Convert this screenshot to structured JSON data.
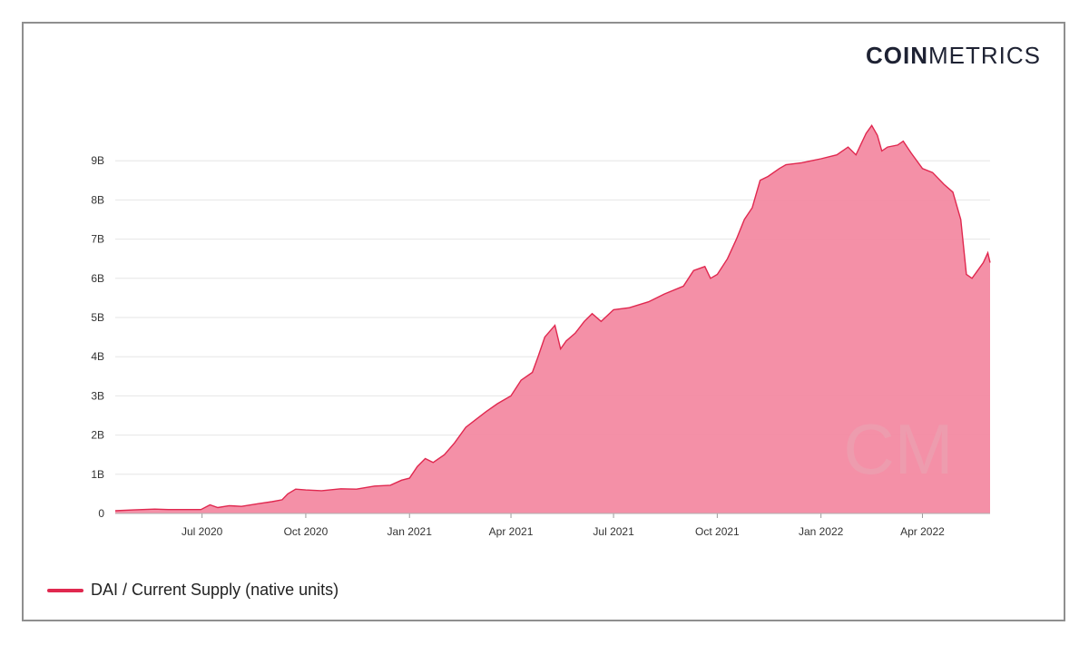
{
  "brand": {
    "logo_bold": "COIN",
    "logo_light": "METRICS",
    "watermark": "CM"
  },
  "colors": {
    "fill": "#f38aa2",
    "stroke": "#e0284f",
    "grid": "#e6e6e6",
    "text": "#333333"
  },
  "legend": {
    "label": "DAI / Current Supply (native units)"
  },
  "chart_data": {
    "type": "area",
    "title": "",
    "xlabel": "",
    "ylabel": "",
    "ylim": [
      0,
      10000000000
    ],
    "xlim": [
      "2020-04-15",
      "2022-05-31"
    ],
    "y_ticks": [
      {
        "value": 0,
        "label": "0"
      },
      {
        "value": 1000000000,
        "label": "1B"
      },
      {
        "value": 2000000000,
        "label": "2B"
      },
      {
        "value": 3000000000,
        "label": "3B"
      },
      {
        "value": 4000000000,
        "label": "4B"
      },
      {
        "value": 5000000000,
        "label": "5B"
      },
      {
        "value": 6000000000,
        "label": "6B"
      },
      {
        "value": 7000000000,
        "label": "7B"
      },
      {
        "value": 8000000000,
        "label": "8B"
      },
      {
        "value": 9000000000,
        "label": "9B"
      }
    ],
    "x_ticks": [
      {
        "date": "2020-07-01",
        "label": "Jul 2020"
      },
      {
        "date": "2020-10-01",
        "label": "Oct 2020"
      },
      {
        "date": "2021-01-01",
        "label": "Jan 2021"
      },
      {
        "date": "2021-04-01",
        "label": "Apr 2021"
      },
      {
        "date": "2021-07-01",
        "label": "Jul 2021"
      },
      {
        "date": "2021-10-01",
        "label": "Oct 2021"
      },
      {
        "date": "2022-01-01",
        "label": "Jan 2022"
      },
      {
        "date": "2022-04-01",
        "label": "Apr 2022"
      }
    ],
    "grid": true,
    "legend_position": "bottom-left",
    "series": [
      {
        "name": "DAI / Current Supply (native units)",
        "points": [
          [
            "2020-04-15",
            0.07
          ],
          [
            "2020-05-01",
            0.09
          ],
          [
            "2020-05-20",
            0.11
          ],
          [
            "2020-06-01",
            0.1
          ],
          [
            "2020-06-15",
            0.1
          ],
          [
            "2020-06-30",
            0.1
          ],
          [
            "2020-07-08",
            0.22
          ],
          [
            "2020-07-15",
            0.15
          ],
          [
            "2020-07-25",
            0.2
          ],
          [
            "2020-08-05",
            0.18
          ],
          [
            "2020-08-20",
            0.25
          ],
          [
            "2020-09-01",
            0.3
          ],
          [
            "2020-09-10",
            0.35
          ],
          [
            "2020-09-15",
            0.5
          ],
          [
            "2020-09-22",
            0.62
          ],
          [
            "2020-10-01",
            0.6
          ],
          [
            "2020-10-15",
            0.58
          ],
          [
            "2020-11-01",
            0.63
          ],
          [
            "2020-11-15",
            0.62
          ],
          [
            "2020-12-01",
            0.7
          ],
          [
            "2020-12-15",
            0.72
          ],
          [
            "2020-12-25",
            0.85
          ],
          [
            "2021-01-01",
            0.9
          ],
          [
            "2021-01-08",
            1.2
          ],
          [
            "2021-01-15",
            1.4
          ],
          [
            "2021-01-22",
            1.3
          ],
          [
            "2021-02-01",
            1.5
          ],
          [
            "2021-02-10",
            1.8
          ],
          [
            "2021-02-20",
            2.2
          ],
          [
            "2021-03-01",
            2.4
          ],
          [
            "2021-03-10",
            2.6
          ],
          [
            "2021-03-20",
            2.8
          ],
          [
            "2021-04-01",
            3.0
          ],
          [
            "2021-04-10",
            3.4
          ],
          [
            "2021-04-20",
            3.6
          ],
          [
            "2021-04-25",
            4.0
          ],
          [
            "2021-05-01",
            4.5
          ],
          [
            "2021-05-10",
            4.8
          ],
          [
            "2021-05-15",
            4.2
          ],
          [
            "2021-05-20",
            4.4
          ],
          [
            "2021-05-28",
            4.6
          ],
          [
            "2021-06-05",
            4.9
          ],
          [
            "2021-06-12",
            5.1
          ],
          [
            "2021-06-20",
            4.9
          ],
          [
            "2021-07-01",
            5.2
          ],
          [
            "2021-07-15",
            5.25
          ],
          [
            "2021-08-01",
            5.4
          ],
          [
            "2021-08-15",
            5.6
          ],
          [
            "2021-09-01",
            5.8
          ],
          [
            "2021-09-10",
            6.2
          ],
          [
            "2021-09-20",
            6.3
          ],
          [
            "2021-09-25",
            6.0
          ],
          [
            "2021-10-01",
            6.1
          ],
          [
            "2021-10-10",
            6.5
          ],
          [
            "2021-10-18",
            7.0
          ],
          [
            "2021-10-25",
            7.5
          ],
          [
            "2021-11-01",
            7.8
          ],
          [
            "2021-11-08",
            8.5
          ],
          [
            "2021-11-15",
            8.6
          ],
          [
            "2021-11-25",
            8.8
          ],
          [
            "2021-12-01",
            8.9
          ],
          [
            "2021-12-15",
            8.95
          ],
          [
            "2022-01-01",
            9.05
          ],
          [
            "2022-01-15",
            9.15
          ],
          [
            "2022-01-25",
            9.35
          ],
          [
            "2022-02-01",
            9.15
          ],
          [
            "2022-02-10",
            9.7
          ],
          [
            "2022-02-15",
            9.9
          ],
          [
            "2022-02-20",
            9.65
          ],
          [
            "2022-02-24",
            9.25
          ],
          [
            "2022-03-01",
            9.35
          ],
          [
            "2022-03-10",
            9.4
          ],
          [
            "2022-03-15",
            9.5
          ],
          [
            "2022-03-22",
            9.2
          ],
          [
            "2022-04-01",
            8.8
          ],
          [
            "2022-04-10",
            8.7
          ],
          [
            "2022-04-20",
            8.4
          ],
          [
            "2022-04-28",
            8.2
          ],
          [
            "2022-05-05",
            7.5
          ],
          [
            "2022-05-10",
            6.1
          ],
          [
            "2022-05-15",
            6.0
          ],
          [
            "2022-05-20",
            6.2
          ],
          [
            "2022-05-25",
            6.4
          ],
          [
            "2022-05-29",
            6.65
          ],
          [
            "2022-05-31",
            6.4
          ]
        ],
        "unit_multiplier": 1000000000
      }
    ]
  }
}
